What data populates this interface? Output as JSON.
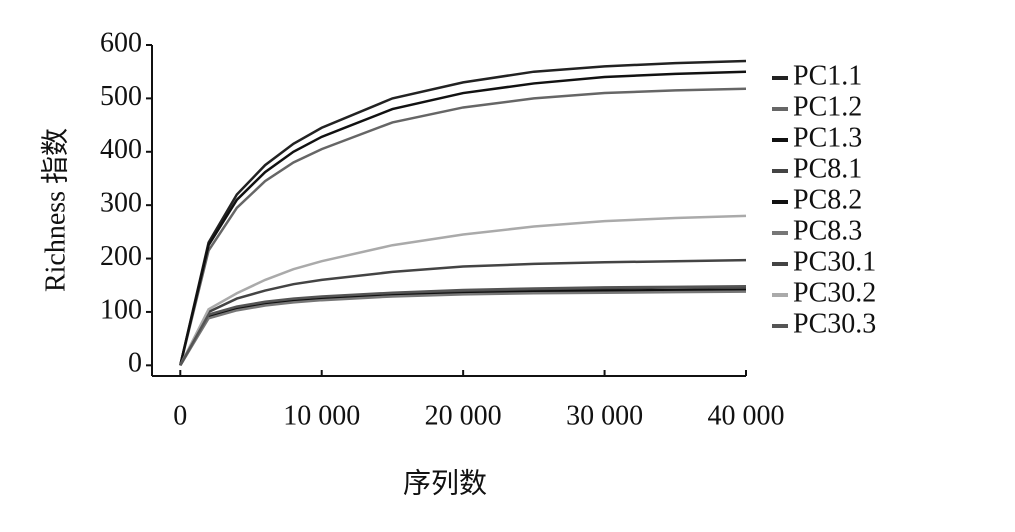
{
  "chart_data": {
    "type": "line",
    "x_label": "序列数",
    "y_label": "Richness 指数",
    "x": [
      0,
      2000,
      4000,
      6000,
      8000,
      10000,
      15000,
      20000,
      25000,
      30000,
      35000,
      40000
    ],
    "series": [
      {
        "name": "PC1.1",
        "color": "#222222",
        "values": [
          0,
          230,
          320,
          375,
          415,
          445,
          500,
          530,
          550,
          560,
          566,
          570
        ]
      },
      {
        "name": "PC1.2",
        "color": "#666666",
        "values": [
          0,
          215,
          295,
          345,
          380,
          405,
          455,
          483,
          500,
          510,
          515,
          518
        ]
      },
      {
        "name": "PC1.3",
        "color": "#111111",
        "values": [
          0,
          225,
          310,
          362,
          400,
          428,
          480,
          510,
          528,
          540,
          546,
          550
        ]
      },
      {
        "name": "PC8.1",
        "color": "#444444",
        "values": [
          0,
          92,
          108,
          117,
          123,
          127,
          134,
          139,
          142,
          144,
          146,
          147
        ]
      },
      {
        "name": "PC8.2",
        "color": "#111111",
        "values": [
          0,
          90,
          105,
          114,
          120,
          124,
          131,
          135,
          138,
          140,
          141,
          142
        ]
      },
      {
        "name": "PC8.3",
        "color": "#777777",
        "values": [
          0,
          88,
          103,
          112,
          118,
          122,
          129,
          133,
          135,
          136,
          137,
          138
        ]
      },
      {
        "name": "PC30.1",
        "color": "#444444",
        "values": [
          0,
          100,
          125,
          140,
          152,
          160,
          175,
          185,
          190,
          193,
          195,
          197
        ]
      },
      {
        "name": "PC30.2",
        "color": "#aaaaaa",
        "values": [
          0,
          105,
          135,
          160,
          180,
          195,
          225,
          245,
          260,
          270,
          276,
          280
        ]
      },
      {
        "name": "PC30.3",
        "color": "#555555",
        "values": [
          0,
          95,
          110,
          119,
          125,
          129,
          136,
          141,
          144,
          146,
          147,
          148
        ]
      }
    ],
    "xlim": [
      -2000,
      40000
    ],
    "ylim": [
      -20,
      600
    ],
    "xticks": [
      0,
      {
        "value": 10000,
        "label": "10 000"
      },
      {
        "value": 20000,
        "label": "20 000"
      },
      {
        "value": 30000,
        "label": "30 000"
      },
      {
        "value": 40000,
        "label": "40 000"
      }
    ],
    "yticks": [
      0,
      100,
      200,
      300,
      400,
      500,
      600
    ],
    "grid": false,
    "legend": "right"
  }
}
